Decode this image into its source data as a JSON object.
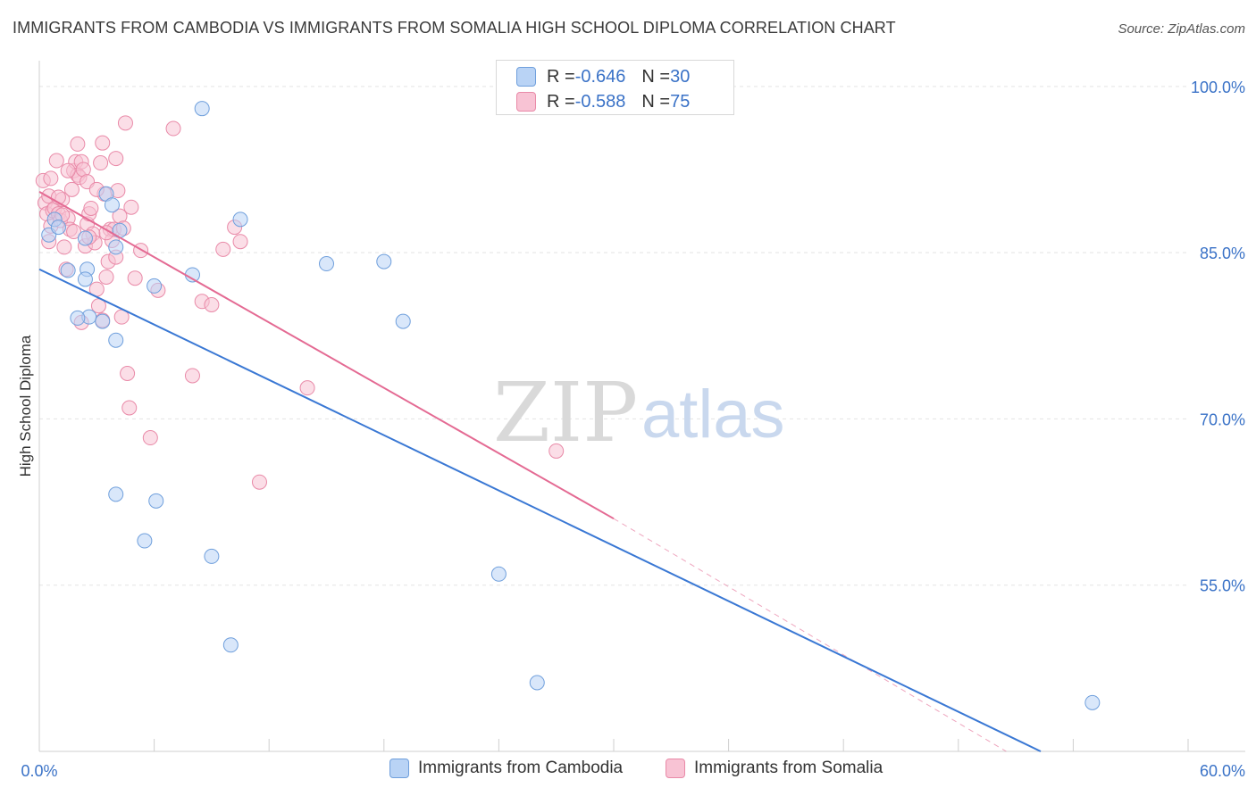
{
  "header": {
    "title": "IMMIGRANTS FROM CAMBODIA VS IMMIGRANTS FROM SOMALIA HIGH SCHOOL DIPLOMA CORRELATION CHART",
    "source": "Source: ZipAtlas.com"
  },
  "stats": [
    {
      "r_label": "R = ",
      "r_value": "-0.646",
      "n_label": "N = ",
      "n_value": "30"
    },
    {
      "r_label": "R = ",
      "r_value": "-0.588",
      "n_label": "N = ",
      "n_value": "75"
    }
  ],
  "watermark": {
    "zip": "ZIP",
    "atlas": "atlas"
  },
  "colors": {
    "cambodia_fill": "#b9d3f5",
    "cambodia_stroke": "#6f9fdc",
    "cambodia_line": "#3a78d4",
    "somalia_fill": "#f8c3d4",
    "somalia_stroke": "#e98aa8",
    "somalia_line": "#e46a93",
    "tick_label": "#3a72c7",
    "grid": "#e3e3e3"
  },
  "chart_data": {
    "type": "scatter",
    "title": "IMMIGRANTS FROM CAMBODIA VS IMMIGRANTS FROM SOMALIA HIGH SCHOOL DIPLOMA CORRELATION CHART",
    "xlabel": "",
    "ylabel": "High School Diploma",
    "xlim": [
      0,
      60
    ],
    "ylim": [
      40,
      102
    ],
    "x_tick_labels": [
      "0.0%",
      "60.0%"
    ],
    "y_ticks": [
      55,
      70,
      85,
      100
    ],
    "y_tick_labels": [
      "55.0%",
      "70.0%",
      "85.0%",
      "100.0%"
    ],
    "grid": true,
    "legend_position": "bottom-center",
    "series": [
      {
        "name": "Immigrants from Cambodia",
        "r": -0.646,
        "n": 30,
        "points": [
          [
            0.5,
            86.6
          ],
          [
            0.8,
            88.0
          ],
          [
            1.0,
            87.3
          ],
          [
            1.5,
            83.4
          ],
          [
            2.4,
            86.3
          ],
          [
            2.5,
            83.5
          ],
          [
            4.0,
            85.5
          ],
          [
            2.4,
            82.6
          ],
          [
            3.3,
            78.8
          ],
          [
            4.0,
            77.1
          ],
          [
            2.6,
            79.2
          ],
          [
            2.0,
            79.1
          ],
          [
            4.2,
            87.0
          ],
          [
            3.5,
            90.3
          ],
          [
            3.8,
            89.3
          ],
          [
            6.0,
            82.0
          ],
          [
            8.0,
            83.0
          ],
          [
            8.5,
            98.0
          ],
          [
            10.5,
            88.0
          ],
          [
            15.0,
            84.0
          ],
          [
            18.0,
            84.2
          ],
          [
            19.0,
            78.8
          ],
          [
            4.0,
            63.2
          ],
          [
            6.1,
            62.6
          ],
          [
            5.5,
            59.0
          ],
          [
            9.0,
            57.6
          ],
          [
            10.0,
            49.6
          ],
          [
            24.0,
            56.0
          ],
          [
            26.0,
            46.2
          ],
          [
            55.0,
            44.4
          ]
        ],
        "trend": {
          "x": [
            0,
            52.3
          ],
          "y": [
            83.5,
            40.0
          ]
        }
      },
      {
        "name": "Immigrants from Somalia",
        "r": -0.588,
        "n": 75,
        "points": [
          [
            0.3,
            89.5
          ],
          [
            0.4,
            88.5
          ],
          [
            0.5,
            90.1
          ],
          [
            0.6,
            87.4
          ],
          [
            0.7,
            88.8
          ],
          [
            0.5,
            86.0
          ],
          [
            0.8,
            89.0
          ],
          [
            1.0,
            88.5
          ],
          [
            1.1,
            87.9
          ],
          [
            1.2,
            89.8
          ],
          [
            1.3,
            85.5
          ],
          [
            1.4,
            83.5
          ],
          [
            1.5,
            88.1
          ],
          [
            1.6,
            87.1
          ],
          [
            1.7,
            90.7
          ],
          [
            1.8,
            92.4
          ],
          [
            1.9,
            93.2
          ],
          [
            2.0,
            92.0
          ],
          [
            2.1,
            91.8
          ],
          [
            2.2,
            93.2
          ],
          [
            2.3,
            92.5
          ],
          [
            2.4,
            85.6
          ],
          [
            2.5,
            87.6
          ],
          [
            2.6,
            88.5
          ],
          [
            2.7,
            89.0
          ],
          [
            2.8,
            86.7
          ],
          [
            2.9,
            85.9
          ],
          [
            3.0,
            81.7
          ],
          [
            3.1,
            80.2
          ],
          [
            3.2,
            93.1
          ],
          [
            3.3,
            94.9
          ],
          [
            3.4,
            90.3
          ],
          [
            3.5,
            82.8
          ],
          [
            3.6,
            84.2
          ],
          [
            3.7,
            87.1
          ],
          [
            3.8,
            86.1
          ],
          [
            3.9,
            87.1
          ],
          [
            4.0,
            84.6
          ],
          [
            4.1,
            90.6
          ],
          [
            4.2,
            88.3
          ],
          [
            4.3,
            79.2
          ],
          [
            4.4,
            87.2
          ],
          [
            4.5,
            96.7
          ],
          [
            4.6,
            74.1
          ],
          [
            4.7,
            71.0
          ],
          [
            4.8,
            89.1
          ],
          [
            5.0,
            82.7
          ],
          [
            5.3,
            85.2
          ],
          [
            5.8,
            68.3
          ],
          [
            6.2,
            81.6
          ],
          [
            7.0,
            96.2
          ],
          [
            8.0,
            73.9
          ],
          [
            8.5,
            80.6
          ],
          [
            9.0,
            80.3
          ],
          [
            9.6,
            85.3
          ],
          [
            10.2,
            87.3
          ],
          [
            10.5,
            86.0
          ],
          [
            11.5,
            64.3
          ],
          [
            14.0,
            72.8
          ],
          [
            27.0,
            67.1
          ],
          [
            0.2,
            91.5
          ],
          [
            0.9,
            93.3
          ],
          [
            1.5,
            92.4
          ],
          [
            2.0,
            94.8
          ],
          [
            2.5,
            91.4
          ],
          [
            3.0,
            90.7
          ],
          [
            3.5,
            86.8
          ],
          [
            4.0,
            93.5
          ],
          [
            1.0,
            90.0
          ],
          [
            1.2,
            88.4
          ],
          [
            2.2,
            78.7
          ],
          [
            3.3,
            78.9
          ],
          [
            0.6,
            91.7
          ],
          [
            1.8,
            86.9
          ],
          [
            2.6,
            86.4
          ]
        ],
        "trend": {
          "x": [
            0,
            30
          ],
          "y": [
            90.5,
            61.0
          ]
        },
        "trend_extension": {
          "x": [
            30,
            50.5
          ],
          "y": [
            61.0,
            40.0
          ]
        }
      }
    ]
  }
}
